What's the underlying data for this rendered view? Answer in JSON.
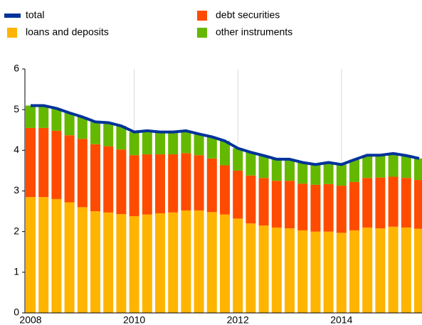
{
  "chart_data": {
    "type": "stacked-bar-line",
    "categories": [
      "2008",
      null,
      null,
      null,
      null,
      null,
      null,
      null,
      "2010",
      null,
      null,
      null,
      null,
      null,
      null,
      null,
      "2012",
      null,
      null,
      null,
      null,
      null,
      null,
      null,
      "2014",
      null,
      null,
      null,
      null,
      null,
      null
    ],
    "series": [
      {
        "name": "loans and deposits",
        "color": "#ffb400",
        "kind": "bar",
        "values": [
          2.85,
          2.85,
          2.8,
          2.72,
          2.6,
          2.5,
          2.47,
          2.43,
          2.38,
          2.42,
          2.45,
          2.47,
          2.52,
          2.52,
          2.48,
          2.42,
          2.32,
          2.2,
          2.15,
          2.1,
          2.08,
          2.03,
          2.0,
          2.0,
          1.97,
          2.03,
          2.1,
          2.08,
          2.12,
          2.1,
          2.07
        ]
      },
      {
        "name": "debt securities",
        "color": "#ff4b00",
        "kind": "bar",
        "values": [
          1.7,
          1.7,
          1.68,
          1.65,
          1.68,
          1.65,
          1.63,
          1.59,
          1.5,
          1.48,
          1.45,
          1.43,
          1.41,
          1.36,
          1.32,
          1.21,
          1.18,
          1.18,
          1.17,
          1.15,
          1.17,
          1.15,
          1.15,
          1.17,
          1.16,
          1.19,
          1.22,
          1.25,
          1.23,
          1.22,
          1.2
        ]
      },
      {
        "name": "other instruments",
        "color": "#65b800",
        "kind": "bar",
        "values": [
          0.55,
          0.55,
          0.55,
          0.55,
          0.54,
          0.55,
          0.58,
          0.58,
          0.57,
          0.58,
          0.55,
          0.55,
          0.55,
          0.52,
          0.53,
          0.6,
          0.55,
          0.57,
          0.55,
          0.53,
          0.53,
          0.52,
          0.5,
          0.53,
          0.52,
          0.55,
          0.56,
          0.55,
          0.57,
          0.55,
          0.53
        ]
      },
      {
        "name": "total",
        "color": "#003399",
        "kind": "line",
        "values": [
          5.1,
          5.1,
          5.03,
          4.92,
          4.82,
          4.7,
          4.68,
          4.6,
          4.45,
          4.48,
          4.45,
          4.45,
          4.48,
          4.4,
          4.33,
          4.23,
          4.05,
          3.95,
          3.87,
          3.78,
          3.78,
          3.7,
          3.65,
          3.7,
          3.65,
          3.77,
          3.88,
          3.88,
          3.92,
          3.87,
          3.8
        ]
      }
    ],
    "ylim": [
      0,
      6
    ],
    "yticks": [
      0,
      1,
      2,
      3,
      4,
      5,
      6
    ],
    "grid": true
  }
}
